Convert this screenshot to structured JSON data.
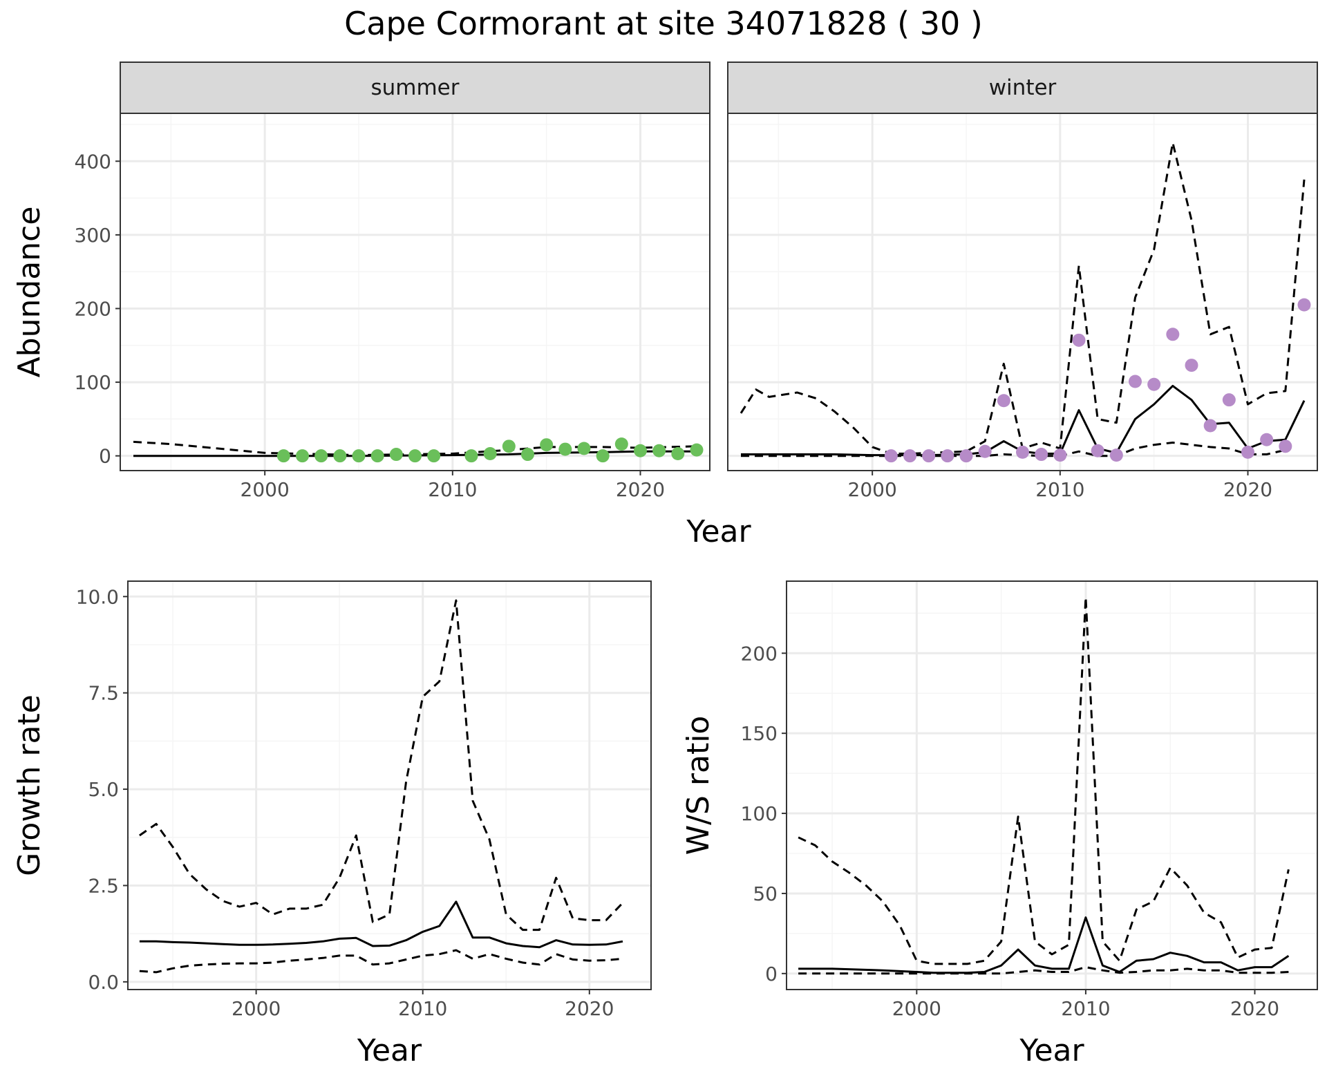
{
  "title": "Cape Cormorant at site 34071828 ( 30 )",
  "colors": {
    "summer_points": "#6abf5a",
    "winter_points": "#b68bc8",
    "line": "#000000",
    "strip_fill": "#d9d9d9",
    "grid_major": "#ebebeb",
    "grid_minor": "#f5f5f5"
  },
  "chart_data": [
    {
      "id": "abundance",
      "type": "line",
      "facet_labels": [
        "summer",
        "winter"
      ],
      "xlabel": "Year",
      "ylabel": "Abundance",
      "xlim": [
        1992.3,
        2023.7
      ],
      "ylim": [
        -20,
        465
      ],
      "x_ticks": [
        2000,
        2010,
        2020
      ],
      "y_ticks": [
        0,
        100,
        200,
        300,
        400
      ],
      "grid": true,
      "facets": [
        {
          "label": "summer",
          "points": {
            "x": [
              2001,
              2002,
              2003,
              2004,
              2005,
              2006,
              2007,
              2008,
              2009,
              2011,
              2012,
              2013,
              2014,
              2015,
              2016,
              2017,
              2018,
              2019,
              2020,
              2021,
              2022,
              2023
            ],
            "y": [
              0,
              0,
              0,
              0,
              0,
              0,
              2,
              0,
              0,
              0,
              3,
              13,
              2,
              15,
              9,
              10,
              0,
              16,
              7,
              7,
              3,
              8
            ]
          },
          "series": [
            {
              "style": "solid",
              "x": [
                1993,
                1995,
                2000,
                2005,
                2010,
                2013,
                2015,
                2018,
                2020,
                2023
              ],
              "y": [
                0,
                0,
                0,
                0,
                1,
                2,
                4,
                5,
                6,
                6
              ]
            },
            {
              "style": "dashed-upper",
              "x": [
                1993,
                1995,
                2000,
                2005,
                2010,
                2013,
                2015,
                2018,
                2020,
                2023
              ],
              "y": [
                19,
                16,
                4,
                1,
                3,
                8,
                12,
                12,
                11,
                13
              ]
            }
          ]
        },
        {
          "label": "winter",
          "points": {
            "x": [
              2001,
              2002,
              2003,
              2004,
              2005,
              2006,
              2007,
              2008,
              2009,
              2010,
              2011,
              2012,
              2013,
              2014,
              2015,
              2016,
              2017,
              2018,
              2019,
              2020,
              2021,
              2022,
              2023
            ],
            "y": [
              0,
              0,
              0,
              0,
              0,
              6,
              75,
              5,
              2,
              1,
              157,
              7,
              1,
              101,
              97,
              165,
              123,
              41,
              76,
              5,
              22,
              13,
              205
            ]
          },
          "series": [
            {
              "style": "solid",
              "x": [
                1993,
                1995,
                1998,
                2000,
                2003,
                2005,
                2006,
                2007,
                2008,
                2009,
                2010,
                2011,
                2012,
                2013,
                2014,
                2015,
                2016,
                2017,
                2018,
                2019,
                2020,
                2021,
                2022,
                2023
              ],
              "y": [
                2,
                2,
                2,
                1,
                1,
                2,
                5,
                20,
                6,
                3,
                3,
                62,
                10,
                4,
                50,
                70,
                95,
                76,
                43,
                45,
                10,
                20,
                22,
                75
              ]
            },
            {
              "style": "dashed-upper",
              "x": [
                1993,
                1993.8,
                1994.5,
                1996,
                1997,
                1998,
                1999,
                2000,
                2001,
                2002,
                2003,
                2004,
                2005,
                2006,
                2007,
                2008,
                2009,
                2010,
                2011,
                2012,
                2013,
                2014,
                2015,
                2016,
                2017,
                2018,
                2019,
                2020,
                2021,
                2022,
                2023
              ],
              "y": [
                58,
                90,
                80,
                86,
                78,
                60,
                38,
                12,
                3,
                3,
                4,
                5,
                6,
                20,
                125,
                10,
                18,
                10,
                258,
                50,
                45,
                215,
                280,
                425,
                320,
                165,
                175,
                70,
                85,
                88,
                375
              ]
            },
            {
              "style": "dashed-lower",
              "x": [
                1993,
                1995,
                2000,
                2005,
                2006,
                2007,
                2008,
                2009,
                2010,
                2011,
                2012,
                2013,
                2014,
                2015,
                2016,
                2017,
                2018,
                2019,
                2020,
                2021,
                2022
              ],
              "y": [
                0,
                0,
                0,
                0,
                0,
                2,
                1,
                0,
                0,
                6,
                0,
                0,
                10,
                15,
                18,
                15,
                12,
                10,
                2,
                2,
                8
              ]
            }
          ]
        }
      ]
    },
    {
      "id": "growth",
      "type": "line",
      "xlabel": "Year",
      "ylabel": "Growth rate",
      "xlim": [
        1992.3,
        2023.7
      ],
      "ylim": [
        -0.2,
        10.4
      ],
      "x_ticks": [
        2000,
        2010,
        2020
      ],
      "y_ticks": [
        0.0,
        2.5,
        5.0,
        7.5,
        10.0
      ],
      "y_tick_labels": [
        "0.0",
        "2.5",
        "5.0",
        "7.5",
        "10.0"
      ],
      "grid": true,
      "series": [
        {
          "style": "solid",
          "x": [
            1993,
            1994,
            1995,
            1996,
            1997,
            1998,
            1999,
            2000,
            2001,
            2002,
            2003,
            2004,
            2005,
            2006,
            2007,
            2008,
            2009,
            2010,
            2011,
            2012,
            2013,
            2014,
            2015,
            2016,
            2017,
            2018,
            2019,
            2020,
            2021,
            2022
          ],
          "y": [
            1.05,
            1.05,
            1.03,
            1.02,
            1.0,
            0.98,
            0.96,
            0.96,
            0.97,
            0.99,
            1.01,
            1.05,
            1.12,
            1.14,
            0.93,
            0.94,
            1.08,
            1.3,
            1.45,
            2.08,
            1.15,
            1.15,
            1.0,
            0.93,
            0.9,
            1.08,
            0.97,
            0.96,
            0.97,
            1.05
          ]
        },
        {
          "style": "dashed-upper",
          "x": [
            1993,
            1994,
            1995,
            1996,
            1997,
            1998,
            1999,
            2000,
            2001,
            2002,
            2003,
            2004,
            2005,
            2006,
            2007,
            2008,
            2009,
            2010,
            2011,
            2012,
            2013,
            2014,
            2015,
            2016,
            2017,
            2018,
            2019,
            2020,
            2021,
            2022
          ],
          "y": [
            3.8,
            4.1,
            3.5,
            2.8,
            2.4,
            2.1,
            1.95,
            2.05,
            1.75,
            1.9,
            1.9,
            2.0,
            2.7,
            3.8,
            1.55,
            1.75,
            5.2,
            7.4,
            7.8,
            9.9,
            4.7,
            3.7,
            1.75,
            1.35,
            1.35,
            2.7,
            1.65,
            1.6,
            1.6,
            2.05
          ]
        },
        {
          "style": "dashed-lower",
          "x": [
            1993,
            1994,
            1995,
            1996,
            1997,
            1998,
            1999,
            2000,
            2001,
            2002,
            2003,
            2004,
            2005,
            2006,
            2007,
            2008,
            2009,
            2010,
            2011,
            2012,
            2013,
            2014,
            2015,
            2016,
            2017,
            2018,
            2019,
            2020,
            2021,
            2022
          ],
          "y": [
            0.28,
            0.25,
            0.35,
            0.42,
            0.45,
            0.47,
            0.48,
            0.48,
            0.5,
            0.55,
            0.58,
            0.62,
            0.68,
            0.68,
            0.45,
            0.48,
            0.58,
            0.68,
            0.72,
            0.82,
            0.6,
            0.72,
            0.6,
            0.5,
            0.45,
            0.72,
            0.58,
            0.55,
            0.56,
            0.6
          ]
        }
      ]
    },
    {
      "id": "ws_ratio",
      "type": "line",
      "xlabel": "Year",
      "ylabel": "W/S ratio",
      "xlim": [
        1992.3,
        2023.7
      ],
      "ylim": [
        -10,
        245
      ],
      "x_ticks": [
        2000,
        2010,
        2020
      ],
      "y_ticks": [
        0,
        50,
        100,
        150,
        200
      ],
      "grid": true,
      "series": [
        {
          "style": "solid",
          "x": [
            1993,
            1995,
            1998,
            2000,
            2001,
            2002,
            2003,
            2004,
            2005,
            2006,
            2007,
            2008,
            2009,
            2010,
            2011,
            2012,
            2013,
            2014,
            2015,
            2016,
            2017,
            2018,
            2019,
            2020,
            2021,
            2022
          ],
          "y": [
            3,
            3,
            2,
            1,
            0.5,
            0.5,
            0.5,
            1,
            5,
            15,
            5,
            3,
            3,
            35,
            5,
            1,
            8,
            9,
            13,
            11,
            7,
            7,
            2,
            4,
            4,
            11
          ]
        },
        {
          "style": "dashed-upper",
          "x": [
            1993,
            1994,
            1995,
            1996,
            1997,
            1998,
            1999,
            2000,
            2001,
            2002,
            2003,
            2004,
            2005,
            2006,
            2007,
            2008,
            2009,
            2010,
            2011,
            2012,
            2013,
            2014,
            2015,
            2016,
            2017,
            2018,
            2019,
            2020,
            2021,
            2022
          ],
          "y": [
            85,
            80,
            70,
            63,
            55,
            45,
            30,
            8,
            6,
            6,
            6,
            8,
            20,
            98,
            20,
            12,
            18,
            235,
            20,
            8,
            40,
            45,
            66,
            55,
            38,
            32,
            10,
            15,
            16,
            65
          ]
        },
        {
          "style": "dashed-lower",
          "x": [
            1993,
            1995,
            2000,
            2005,
            2006,
            2007,
            2008,
            2009,
            2010,
            2011,
            2012,
            2013,
            2014,
            2015,
            2016,
            2017,
            2018,
            2019,
            2020,
            2021,
            2022
          ],
          "y": [
            0,
            0,
            0,
            0,
            1,
            2,
            1,
            1,
            4,
            2,
            0.5,
            1,
            2,
            2,
            3,
            2,
            2,
            0.5,
            0.5,
            0.5,
            1
          ]
        }
      ]
    }
  ]
}
